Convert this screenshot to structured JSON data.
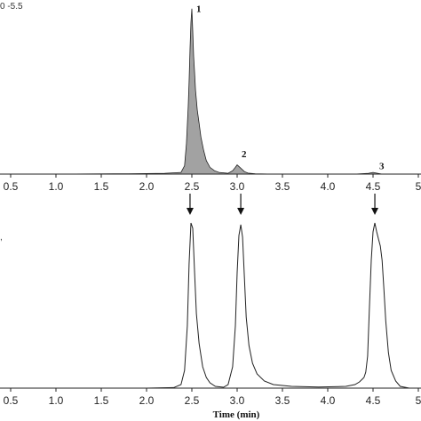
{
  "chart_data": [
    {
      "type": "line",
      "corner_label": "0 -5.5",
      "x_ticks": [
        "0.5",
        "1.0",
        "1.5",
        "2.0",
        "2.5",
        "3.0",
        "3.5",
        "4.0",
        "4.5",
        "5"
      ],
      "xlim": [
        0.4,
        5.0
      ],
      "ylim": [
        0,
        1.0
      ],
      "peak_labels": [
        {
          "text": "1",
          "x": 2.5,
          "y": 0.96
        },
        {
          "text": "2",
          "x": 3.0,
          "y": 0.1
        },
        {
          "text": "3",
          "x": 4.52,
          "y": 0.03
        }
      ],
      "series": [
        {
          "x": [
            0.4,
            1.0,
            1.8,
            2.2,
            2.38,
            2.42,
            2.44,
            2.46,
            2.47,
            2.48,
            2.49,
            2.5,
            2.51,
            2.52,
            2.53,
            2.54,
            2.56,
            2.58,
            2.6,
            2.63,
            2.66,
            2.7,
            2.75,
            2.8,
            2.9,
            2.95,
            2.98,
            3.0,
            3.02,
            3.05,
            3.08,
            3.12,
            3.2,
            3.4,
            3.8,
            4.3,
            4.45,
            4.5,
            4.55,
            4.6,
            4.8,
            5.0
          ],
          "y": [
            0.0,
            0.0,
            0.002,
            0.005,
            0.01,
            0.05,
            0.18,
            0.4,
            0.55,
            0.75,
            0.9,
            0.98,
            0.85,
            0.7,
            0.6,
            0.5,
            0.38,
            0.3,
            0.22,
            0.14,
            0.08,
            0.04,
            0.02,
            0.01,
            0.005,
            0.02,
            0.04,
            0.055,
            0.045,
            0.03,
            0.015,
            0.006,
            0.002,
            0.0,
            0.0,
            0.0,
            0.005,
            0.01,
            0.005,
            0.0,
            0.0,
            0.0
          ]
        }
      ]
    },
    {
      "type": "line",
      "xlabel": "Time (min)",
      "x_ticks": [
        "0.5",
        "1.0",
        "1.5",
        "2.0",
        "2.5",
        "3.0",
        "3.5",
        "4.0",
        "4.5",
        "5"
      ],
      "xlim": [
        0.4,
        5.0
      ],
      "ylim": [
        0,
        1.0
      ],
      "arrows_at": [
        2.48,
        3.04,
        4.52
      ],
      "series": [
        {
          "x": [
            0.4,
            2.0,
            2.3,
            2.38,
            2.42,
            2.45,
            2.47,
            2.49,
            2.51,
            2.53,
            2.55,
            2.58,
            2.62,
            2.66,
            2.7,
            2.76,
            2.85,
            2.9,
            2.95,
            2.98,
            3.0,
            3.02,
            3.04,
            3.06,
            3.08,
            3.1,
            3.13,
            3.17,
            3.22,
            3.3,
            3.4,
            3.6,
            3.9,
            4.2,
            4.3,
            4.35,
            4.38,
            4.4,
            4.42,
            4.44,
            4.46,
            4.48,
            4.5,
            4.52,
            4.54,
            4.56,
            4.58,
            4.6,
            4.62,
            4.64,
            4.67,
            4.7,
            4.75,
            4.8,
            4.9,
            5.0
          ],
          "y": [
            0.0,
            0.0,
            0.003,
            0.02,
            0.1,
            0.35,
            0.7,
            0.93,
            0.9,
            0.65,
            0.42,
            0.25,
            0.12,
            0.06,
            0.03,
            0.01,
            0.005,
            0.02,
            0.12,
            0.35,
            0.65,
            0.86,
            0.92,
            0.85,
            0.62,
            0.4,
            0.24,
            0.14,
            0.08,
            0.04,
            0.02,
            0.01,
            0.006,
            0.01,
            0.02,
            0.035,
            0.05,
            0.06,
            0.09,
            0.18,
            0.45,
            0.72,
            0.88,
            0.93,
            0.88,
            0.84,
            0.8,
            0.72,
            0.56,
            0.38,
            0.2,
            0.1,
            0.04,
            0.01,
            0.0,
            0.0
          ]
        }
      ]
    }
  ]
}
